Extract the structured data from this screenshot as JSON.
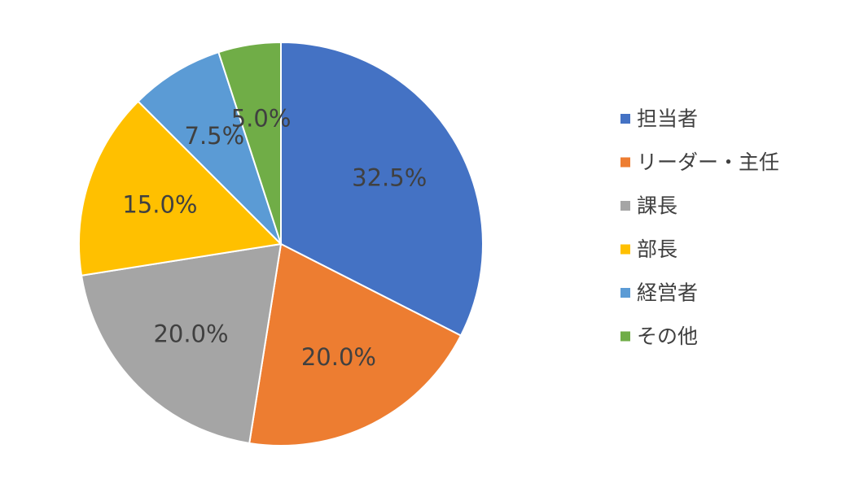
{
  "chart_data": {
    "type": "pie",
    "categories": [
      "担当者",
      "リーダー・主任",
      "課長",
      "部長",
      "経営者",
      "その他"
    ],
    "values": [
      32.5,
      20.0,
      20.0,
      15.0,
      7.5,
      5.0
    ],
    "data_labels": [
      "32.5%",
      "20.0%",
      "20.0%",
      "15.0%",
      "7.5%",
      "5.0%"
    ],
    "colors": [
      "#4472C4",
      "#ED7D31",
      "#A5A5A5",
      "#FFC000",
      "#5B9BD5",
      "#70AD47"
    ],
    "legend_position": "right",
    "start_angle": "top",
    "direction": "clockwise"
  }
}
